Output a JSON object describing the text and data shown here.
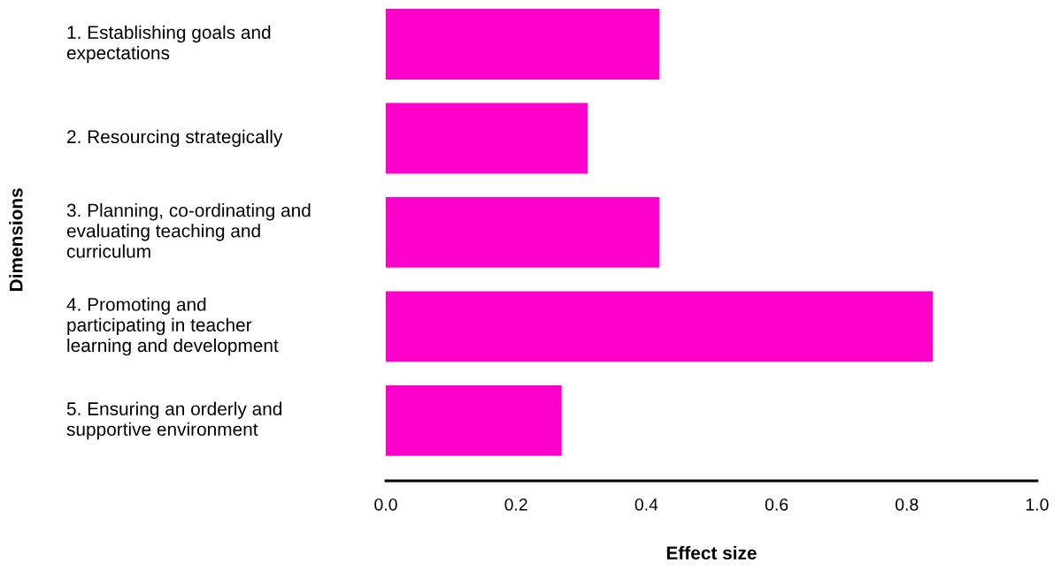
{
  "chart_data": {
    "type": "bar",
    "orientation": "horizontal",
    "xlabel": "Effect size",
    "ylabel": "Dimensions",
    "categories": [
      "1. Establishing goals and\nexpectations",
      "2. Resourcing strategically",
      "3. Planning, co-ordinating and\nevaluating teaching and\ncurriculum",
      "4. Promoting and\nparticipating in teacher\nlearning and development",
      "5. Ensuring an orderly and\nsupportive environment"
    ],
    "values": [
      0.42,
      0.31,
      0.42,
      0.84,
      0.27
    ],
    "color": "#ff00cc",
    "xlim": [
      0,
      1
    ],
    "xticks": [
      {
        "value": 0,
        "label": "0.0"
      },
      {
        "value": 0.2,
        "label": "0.2"
      },
      {
        "value": 0.4,
        "label": "0.4"
      },
      {
        "value": 0.6,
        "label": "0.6"
      },
      {
        "value": 0.8,
        "label": "0.8"
      },
      {
        "value": 1,
        "label": "1.0"
      }
    ],
    "grid": false,
    "legend": false
  }
}
